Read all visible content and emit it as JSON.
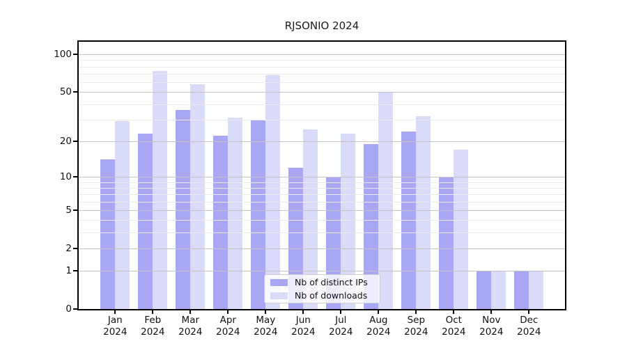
{
  "chart_data": {
    "type": "bar",
    "title": "RJSONIO 2024",
    "year": "2024",
    "months": [
      "Jan",
      "Feb",
      "Mar",
      "Apr",
      "May",
      "Jun",
      "Jul",
      "Aug",
      "Sep",
      "Oct",
      "Nov",
      "Dec"
    ],
    "categories": [
      "Jan 2024",
      "Feb 2024",
      "Mar 2024",
      "Apr 2024",
      "May 2024",
      "Jun 2024",
      "Jul 2024",
      "Aug 2024",
      "Sep 2024",
      "Oct 2024",
      "Nov 2024",
      "Dec 2024"
    ],
    "series": [
      {
        "name": "Nb of distinct IPs",
        "color": "#a7a7f3",
        "values": [
          14,
          23,
          36,
          22,
          30,
          12,
          10,
          19,
          24,
          10,
          1,
          1
        ]
      },
      {
        "name": "Nb of downloads",
        "color": "#dadaf9",
        "values": [
          29,
          74,
          58,
          31,
          68,
          25,
          23,
          50,
          32,
          17,
          1,
          1
        ]
      }
    ],
    "yscale": "log1p",
    "ylim": [
      0,
      126
    ],
    "yticks": [
      0,
      1,
      2,
      5,
      10,
      20,
      50,
      100
    ],
    "minor_gridlines": [
      3,
      4,
      6,
      7,
      8,
      9,
      30,
      40,
      60,
      70,
      80,
      90
    ],
    "grid": true,
    "legend_position": "lower center inside",
    "colors": {
      "major_grid": "#c3c3c3",
      "minor_grid": "#eaeaea",
      "spine": "#000000",
      "background": "#ffffff"
    }
  }
}
